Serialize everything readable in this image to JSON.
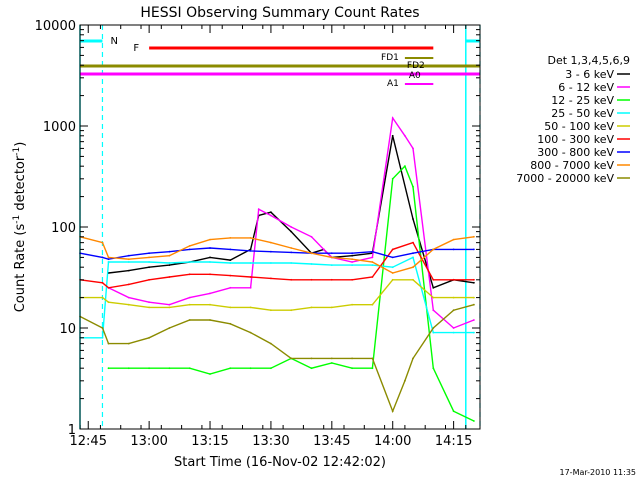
{
  "chart_data": {
    "type": "line",
    "title": "HESSI Observing Summary Count Rates",
    "xlabel": "Start Time (16-Nov-02 12:42:02)",
    "ylabel": "Count Rate (s⁻¹ detector⁻¹)",
    "ylabel_main": "Count Rate (s",
    "ylabel_sup1": "-1",
    "ylabel_mid": " detector",
    "ylabel_sup2": "-1",
    "ylabel_end": ")",
    "y_scale": "log",
    "ylim": [
      1,
      10000
    ],
    "xlim_minutes": [
      -2.03,
      96.5
    ],
    "x_tick_labels": [
      "12:45",
      "13:00",
      "13:15",
      "13:30",
      "13:45",
      "14:00",
      "14:15"
    ],
    "x_ticks_minutes": [
      0,
      15,
      30,
      45,
      60,
      75,
      90
    ],
    "y_tick_labels": [
      "1",
      "10",
      "100",
      "1000",
      "10000"
    ],
    "y_ticks": [
      1,
      10,
      100,
      1000,
      10000
    ],
    "legend_title": "Det 1,3,4,5,6,9",
    "legend_placement": "right",
    "footer": "17-Mar-2010 11:35",
    "flag_labels": [
      "N",
      "F",
      "FD1",
      "FD2",
      "A1",
      "A0"
    ],
    "flags": {
      "night_shading": [
        [
          -2.03,
          3.5
        ],
        [
          93,
          96.5
        ]
      ],
      "night_label": "N",
      "flare_bar": {
        "label": "F",
        "start": 15,
        "end": 85,
        "color": "#ff0000"
      },
      "fd1": {
        "label": "FD1",
        "start": -2.03,
        "end": 96.5,
        "color": "#8b8b00"
      },
      "fd2": {
        "label": "FD2",
        "start": 78,
        "end": 85
      },
      "a1": {
        "label": "A1",
        "start": -2.03,
        "end": 96.5,
        "color": "#ff00ff"
      },
      "a0": {
        "label": "A0",
        "start": 78,
        "end": 85
      }
    },
    "series": [
      {
        "name": "3 - 6 keV",
        "color": "#000000",
        "x": [
          5,
          10,
          15,
          20,
          25,
          30,
          35,
          40,
          42,
          45,
          50,
          55,
          58,
          60,
          65,
          70,
          75,
          80,
          85,
          90,
          95
        ],
        "y": [
          35,
          37,
          40,
          42,
          45,
          50,
          47,
          60,
          130,
          140,
          90,
          55,
          60,
          50,
          52,
          55,
          800,
          120,
          25,
          30,
          28
        ]
      },
      {
        "name": "6 - 12 keV",
        "color": "#ff00ff",
        "x": [
          5,
          10,
          15,
          20,
          25,
          30,
          35,
          40,
          42,
          45,
          50,
          55,
          58,
          60,
          65,
          70,
          75,
          78,
          80,
          85,
          90,
          95
        ],
        "y": [
          25,
          20,
          18,
          17,
          20,
          22,
          25,
          25,
          150,
          130,
          100,
          80,
          60,
          50,
          45,
          50,
          1200,
          800,
          600,
          15,
          10,
          12
        ]
      },
      {
        "name": "12 - 25 keV",
        "color": "#00ff00",
        "x": [
          5,
          10,
          15,
          20,
          25,
          30,
          35,
          40,
          45,
          50,
          55,
          60,
          65,
          70,
          75,
          78,
          80,
          85,
          90,
          95
        ],
        "y": [
          4,
          4,
          4,
          4,
          4,
          3.5,
          4,
          4,
          4,
          5,
          4,
          4.5,
          4,
          4,
          300,
          400,
          250,
          4,
          1.5,
          1.2
        ]
      },
      {
        "name": "25 - 50 keV",
        "color": "#00ffff",
        "x": [
          -2,
          3.5,
          5,
          10,
          15,
          20,
          25,
          30,
          35,
          40,
          45,
          50,
          55,
          60,
          65,
          70,
          75,
          80,
          85,
          90,
          95
        ],
        "y": [
          8,
          8,
          45,
          45,
          45,
          44,
          45,
          45,
          44,
          44,
          44,
          44,
          43,
          42,
          42,
          42,
          40,
          50,
          9,
          9,
          9
        ]
      },
      {
        "name": "50 - 100 keV",
        "color": "#cccc00",
        "x": [
          -2,
          3.5,
          5,
          10,
          15,
          20,
          25,
          30,
          35,
          40,
          45,
          50,
          55,
          60,
          65,
          70,
          75,
          80,
          85,
          90,
          95
        ],
        "y": [
          20,
          20,
          18,
          17,
          16,
          16,
          17,
          17,
          16,
          16,
          15,
          15,
          16,
          16,
          17,
          17,
          30,
          30,
          20,
          20,
          20
        ]
      },
      {
        "name": "100 - 300 keV",
        "color": "#ff0000",
        "x": [
          -2,
          3.5,
          5,
          10,
          15,
          20,
          25,
          30,
          35,
          40,
          45,
          50,
          55,
          60,
          65,
          70,
          75,
          80,
          85,
          90,
          95
        ],
        "y": [
          30,
          28,
          25,
          27,
          30,
          32,
          34,
          34,
          33,
          32,
          31,
          30,
          30,
          30,
          30,
          32,
          60,
          70,
          30,
          30,
          30
        ]
      },
      {
        "name": "300 - 800 keV",
        "color": "#0000ff",
        "x": [
          -2,
          3.5,
          5,
          10,
          15,
          20,
          25,
          30,
          35,
          40,
          45,
          50,
          55,
          60,
          65,
          70,
          75,
          80,
          85,
          90,
          95
        ],
        "y": [
          55,
          50,
          48,
          52,
          55,
          57,
          60,
          62,
          60,
          58,
          57,
          56,
          55,
          55,
          55,
          57,
          50,
          55,
          60,
          60,
          60
        ]
      },
      {
        "name": "800 - 7000 keV",
        "color": "#ff8800",
        "x": [
          -2,
          3.5,
          5,
          10,
          15,
          20,
          25,
          30,
          35,
          40,
          45,
          50,
          55,
          60,
          65,
          70,
          75,
          80,
          85,
          90,
          95
        ],
        "y": [
          80,
          70,
          50,
          48,
          50,
          52,
          65,
          75,
          78,
          78,
          70,
          62,
          55,
          50,
          48,
          45,
          35,
          40,
          60,
          75,
          80
        ]
      },
      {
        "name": "7000 - 20000 keV",
        "color": "#8b8b00",
        "x": [
          -2,
          3.5,
          5,
          10,
          15,
          20,
          25,
          30,
          35,
          40,
          45,
          50,
          55,
          60,
          65,
          70,
          75,
          78,
          80,
          85,
          90,
          95
        ],
        "y": [
          13,
          10,
          7,
          7,
          8,
          10,
          12,
          12,
          11,
          9,
          7,
          5,
          5,
          5,
          5,
          5,
          1.5,
          3,
          5,
          10,
          15,
          17
        ]
      }
    ]
  }
}
